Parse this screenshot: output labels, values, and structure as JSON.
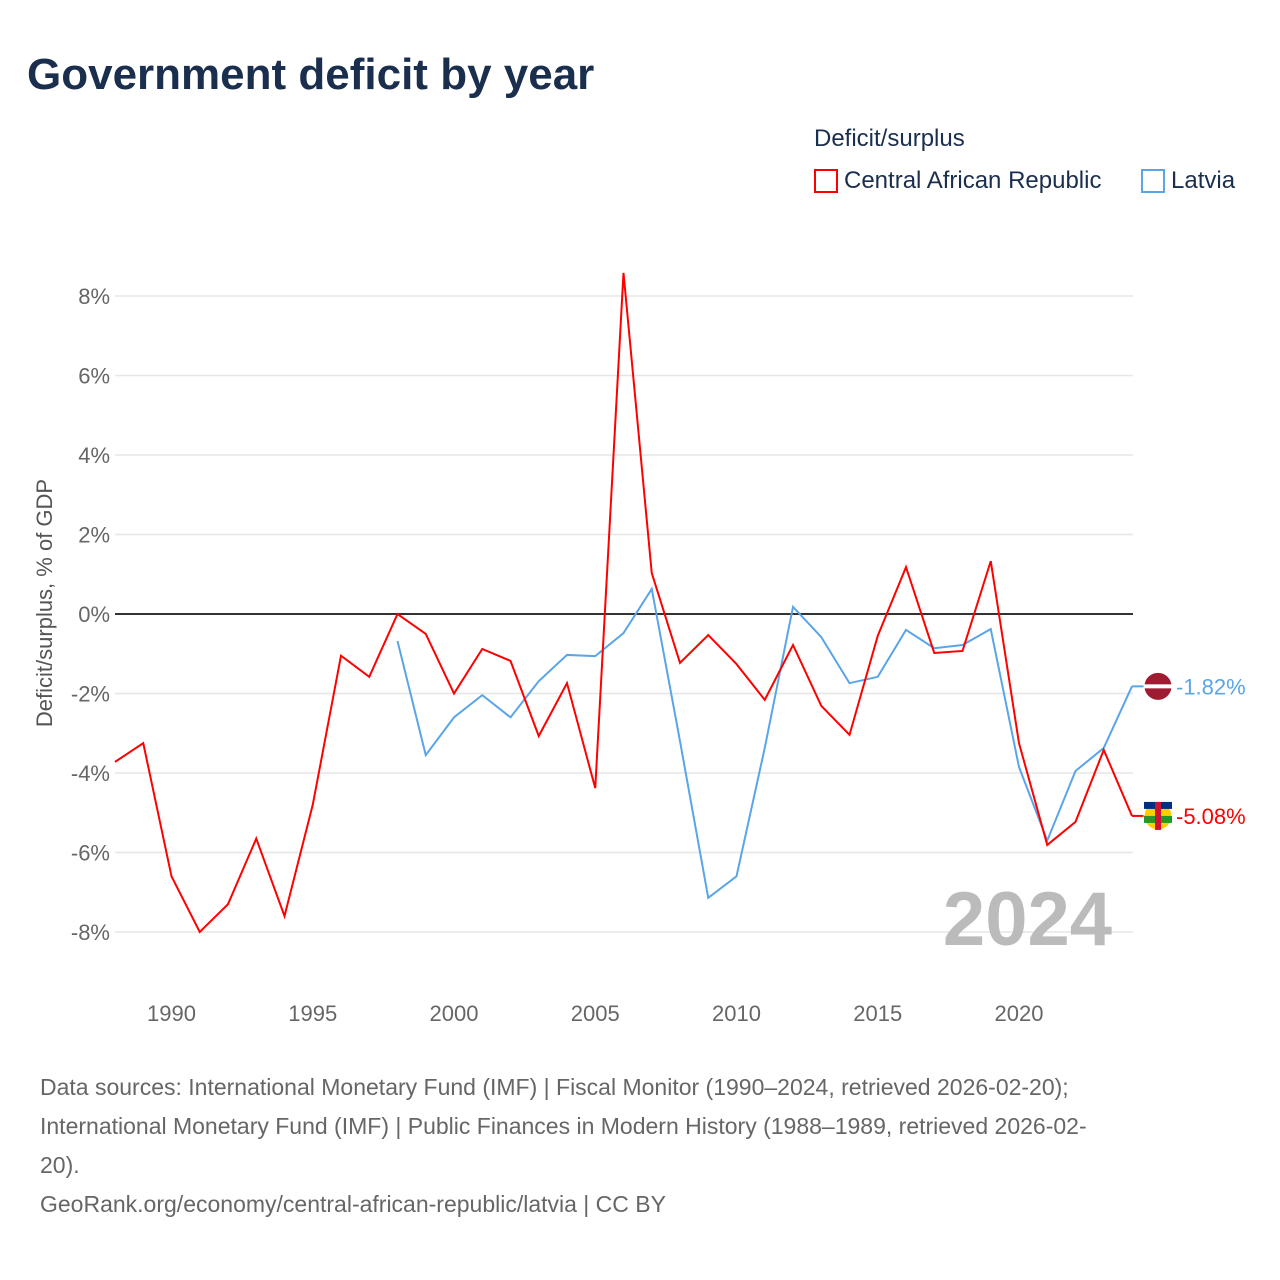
{
  "title": "Government deficit by year",
  "legend": {
    "title": "Deficit/surplus",
    "items": [
      "Central African Republic",
      "Latvia"
    ]
  },
  "sources": {
    "line1": "Data sources: International Monetary Fund (IMF) | Fiscal Monitor (1990–2024, retrieved 2026-02-20);",
    "line2": "International Monetary Fund (IMF) | Public Finances in Modern History (1988–1989, retrieved 2026-02-",
    "line3": "20).",
    "line4": "GeoRank.org/economy/central-african-republic/latvia | CC BY"
  },
  "chart_data": {
    "type": "line",
    "title": "Government deficit by year",
    "ylabel": "Deficit/surplus, % of GDP",
    "year_label": "2024",
    "ylim": [
      -9,
      9
    ],
    "xlim": [
      1988,
      2024
    ],
    "yticks": [
      -8,
      -6,
      -4,
      -2,
      0,
      2,
      4,
      6,
      8
    ],
    "ytick_labels": [
      "-8%",
      "-6%",
      "-4%",
      "-2%",
      "0%",
      "2%",
      "4%",
      "6%",
      "8%"
    ],
    "xticks": [
      1990,
      1995,
      2000,
      2005,
      2010,
      2015,
      2020
    ],
    "xtick_labels": [
      "1990",
      "1995",
      "2000",
      "2005",
      "2010",
      "2015",
      "2020"
    ],
    "series": [
      {
        "name": "Central African Republic",
        "color": "#ff0000",
        "end_label": "-5.08%",
        "start": 1988,
        "values": [
          -3.72,
          -3.25,
          -6.6,
          -8.0,
          -7.3,
          -5.65,
          -7.6,
          -4.8,
          -1.05,
          -1.58,
          0,
          -0.5,
          -2.0,
          -0.88,
          -1.18,
          -3.07,
          -1.74,
          -4.38,
          8.58,
          1.03,
          -1.23,
          -0.53,
          -1.26,
          -2.16,
          -0.78,
          -2.31,
          -3.04,
          -0.55,
          1.18,
          -0.98,
          -0.93,
          1.33,
          -3.25,
          -5.81,
          -5.23,
          -3.42,
          -5.08
        ]
      },
      {
        "name": "Latvia",
        "color": "#5aa5e8",
        "end_label": "-1.82%",
        "start": 1998,
        "values": [
          -0.68,
          -3.55,
          -2.6,
          -2.04,
          -2.6,
          -1.69,
          -1.03,
          -1.06,
          -0.48,
          0.63,
          -3.2,
          -7.14,
          -6.6,
          -3.37,
          0.18,
          -0.58,
          -1.74,
          -1.58,
          -0.4,
          -0.86,
          -0.78,
          -0.38,
          -3.85,
          -5.7,
          -3.95,
          -3.37,
          -1.82
        ]
      }
    ]
  }
}
